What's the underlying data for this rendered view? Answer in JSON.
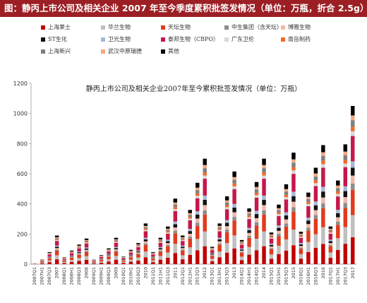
{
  "header": {
    "title": "图：静丙上市公司及相关企业 2007 年至今季度累积批签发情况（单位：万瓶，折合 2.5g）"
  },
  "chart_data": {
    "type": "bar",
    "stacked": true,
    "title": "静丙上市公司及相关企业2007年至今累积批签发情况（单位：万瓶）",
    "xlabel": "",
    "ylabel": "",
    "ylim": [
      0,
      1200
    ],
    "yticks": [
      0,
      200,
      400,
      600,
      800,
      1000,
      1200
    ],
    "grid": false,
    "legend_position": "top",
    "categories": [
      "2007Q1",
      "2007H1",
      "2007Q3",
      "2007",
      "2008Q1",
      "2008H1",
      "2008Q3",
      "2008",
      "2009Q1",
      "2009H1",
      "2009Q3",
      "2009",
      "2010Q1",
      "2010H1",
      "2010Q3",
      "2010",
      "2011Q1",
      "2011H1",
      "2011Q3",
      "2011",
      "2012Q1",
      "2012H1",
      "2012Q3",
      "2012",
      "2013Q1",
      "2013H1",
      "2013Q3",
      "2013",
      "2014Q1",
      "2014H1",
      "2014Q3",
      "2014",
      "2015Q1",
      "2015H1",
      "2015Q3",
      "2015",
      "2016Q1",
      "2016H1",
      "2016Q3",
      "2016",
      "2017Q1",
      "2017H1",
      "2017Q3",
      "2017"
    ],
    "totals": [
      5,
      30,
      80,
      190,
      45,
      90,
      130,
      170,
      30,
      60,
      105,
      175,
      50,
      95,
      140,
      270,
      80,
      175,
      250,
      435,
      190,
      360,
      540,
      700,
      115,
      270,
      450,
      615,
      160,
      370,
      545,
      700,
      210,
      395,
      530,
      740,
      215,
      475,
      640,
      790,
      250,
      555,
      795,
      1050
    ],
    "series": [
      {
        "name": "上海莱士",
        "color": "#c00000",
        "share": 0.17
      },
      {
        "name": "华兰生物",
        "color": "#bfbfbf",
        "share": 0.14
      },
      {
        "name": "天坛生物",
        "color": "#e23a1c",
        "share": 0.16
      },
      {
        "name": "中生集团（含天坛）",
        "color": "#8c8c8c",
        "share": 0.04
      },
      {
        "name": "博雅生物",
        "color": "#f0b8a8",
        "share": 0.05
      },
      {
        "name": "ST生化",
        "color": "#111111",
        "share": 0.05
      },
      {
        "name": "卫光生物",
        "color": "#a6b8d8",
        "share": 0.04
      },
      {
        "name": "泰邦生物（CBPO）",
        "color": "#c6174a",
        "share": 0.16
      },
      {
        "name": "广东卫伦",
        "color": "#d9d9d9",
        "share": 0.03
      },
      {
        "name": "南岳制药",
        "color": "#f06a2a",
        "share": 0.03
      },
      {
        "name": "上海新兴",
        "color": "#7f7f7f",
        "share": 0.04
      },
      {
        "name": "武汉中原瑞德",
        "color": "#f4a780",
        "share": 0.03
      },
      {
        "name": "其他",
        "color": "#000000",
        "share": 0.06
      }
    ]
  }
}
